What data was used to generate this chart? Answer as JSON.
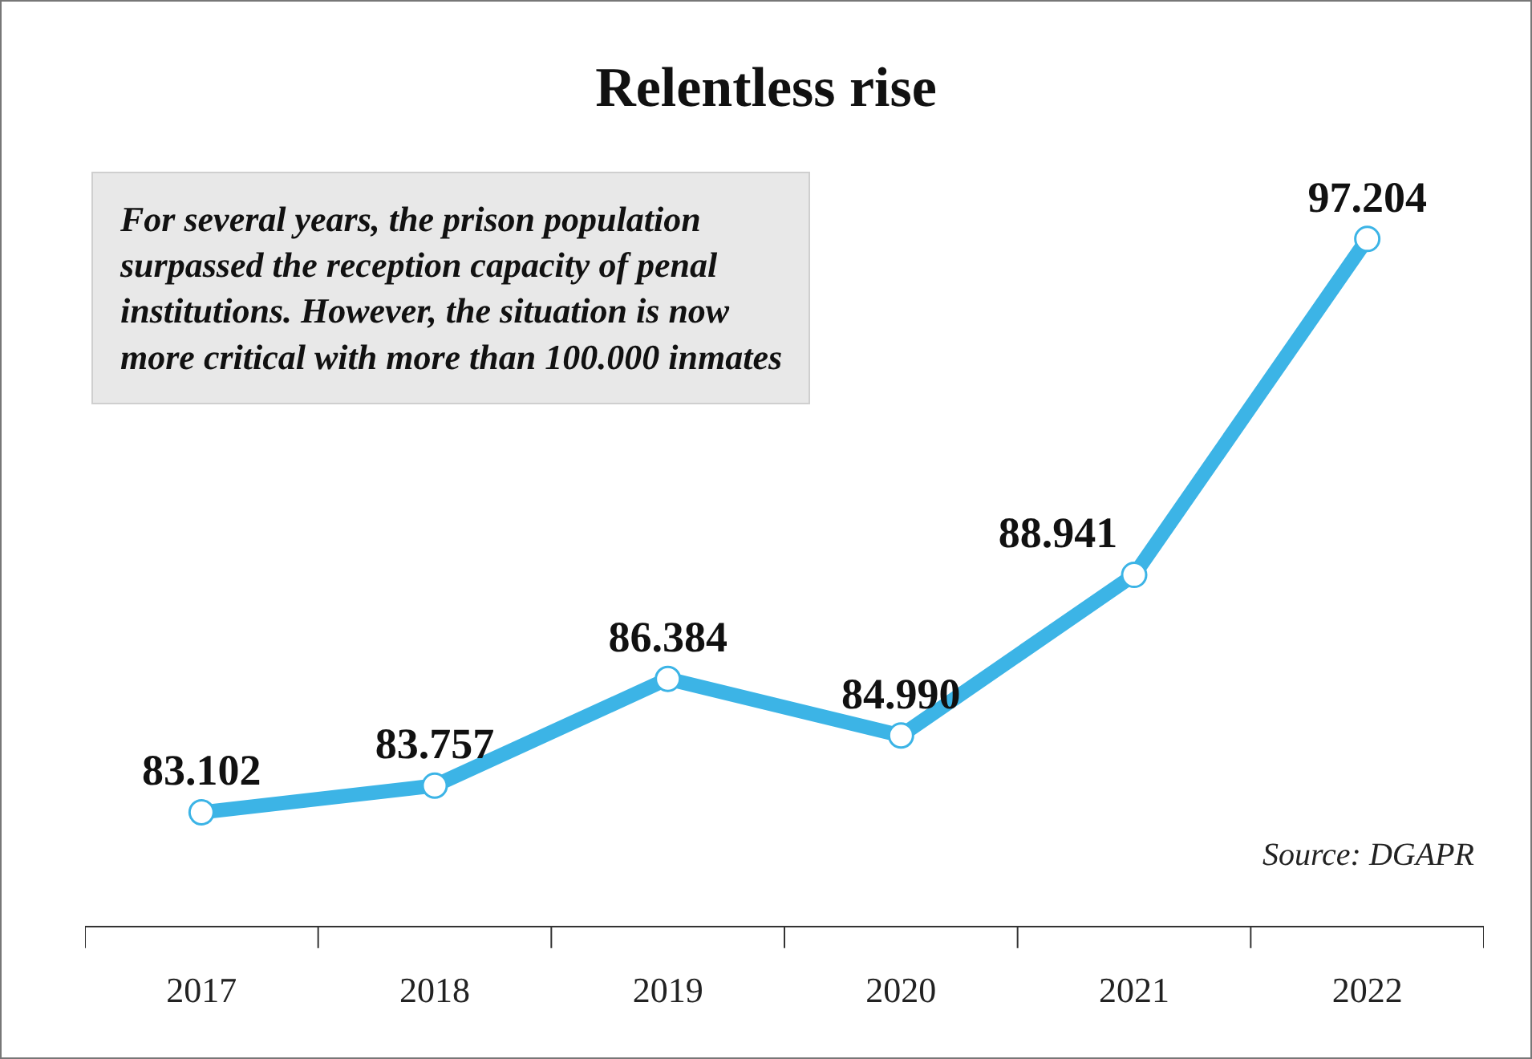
{
  "chart_data": {
    "type": "line",
    "title": "Relentless rise",
    "categories": [
      "2017",
      "2018",
      "2019",
      "2020",
      "2021",
      "2022"
    ],
    "series": [
      {
        "color": "#3cb4e6",
        "values": [
          83102,
          83757,
          86384,
          84990,
          88941,
          97204
        ],
        "value_labels": [
          "83.102",
          "83.757",
          "86.384",
          "84.990",
          "88.941",
          "97.204"
        ]
      }
    ],
    "marker": "circle",
    "line_style": "solid",
    "tick_labels": "x",
    "annotations": [
      "For several years, the prison population surpassed the reception capacity of penal institutions. However, the situation is now more critical with more than 100.000 inmates",
      "Source: DGAPR"
    ]
  }
}
